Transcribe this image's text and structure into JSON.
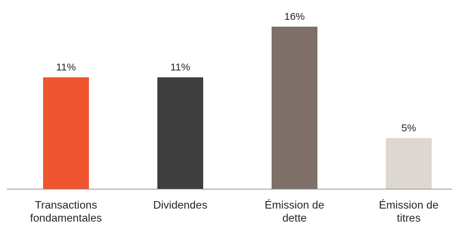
{
  "chart_data": {
    "type": "bar",
    "categories": [
      [
        "Transactions",
        "fondamentales"
      ],
      [
        "Dividendes"
      ],
      [
        "Émission de",
        "dette"
      ],
      [
        "Émission de",
        "titres"
      ]
    ],
    "values": [
      11,
      11,
      16,
      5
    ],
    "data_labels": [
      "11%",
      "11%",
      "16%",
      "5%"
    ],
    "colors": [
      "#f05532",
      "#3f3f40",
      "#7e6f69",
      "#ded6d0"
    ],
    "unit": "%",
    "ylim": [
      0,
      16
    ],
    "title": "",
    "xlabel": "",
    "ylabel": "",
    "grid": false,
    "legend": "none"
  }
}
